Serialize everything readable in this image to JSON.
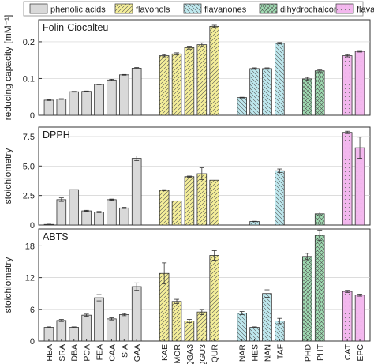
{
  "legend": {
    "items": [
      {
        "label": "phenolic acids",
        "color": "#d9d9d9",
        "pattern": "solid"
      },
      {
        "label": "flavonols",
        "color": "#f5ef9a",
        "pattern": "slash"
      },
      {
        "label": "flavanones",
        "color": "#bfe9ef",
        "pattern": "backslash"
      },
      {
        "label": "dihydrochalcones",
        "color": "#9fdcb2",
        "pattern": "cross"
      },
      {
        "label": "flavanols",
        "color": "#f3b8ee",
        "pattern": "dots"
      }
    ]
  },
  "chart_data": [
    {
      "type": "bar",
      "title": "Folin-Ciocalteu",
      "ylabel": "reducing capacity [mM⁻¹]",
      "ylim": [
        0,
        0.26
      ],
      "yticks": [
        0,
        0.1,
        0.2
      ],
      "yticklabels": [
        "0",
        "0.1",
        "0.2"
      ],
      "grid": true,
      "categories": [
        "HBA",
        "SRA",
        "DBA",
        "PCA",
        "FEA",
        "CAA",
        "SIA",
        "GAA",
        "KAE",
        "MOR",
        "QGA3",
        "QGU3",
        "QUR",
        "NAR",
        "HES",
        "NAN",
        "TAF",
        "PHD",
        "PHT",
        "CAT",
        "EPC"
      ],
      "groups": [
        "phenolic acids",
        "phenolic acids",
        "phenolic acids",
        "phenolic acids",
        "phenolic acids",
        "phenolic acids",
        "phenolic acids",
        "phenolic acids",
        "flavonols",
        "flavonols",
        "flavonols",
        "flavonols",
        "flavonols",
        "flavanones",
        "flavanones",
        "flavanones",
        "flavanones",
        "dihydrochalcones",
        "dihydrochalcones",
        "flavanols",
        "flavanols"
      ],
      "values": [
        0.041,
        0.044,
        0.064,
        0.065,
        0.084,
        0.096,
        0.11,
        0.128,
        0.162,
        0.167,
        0.184,
        0.192,
        0.242,
        0.048,
        0.127,
        0.127,
        0.196,
        0.099,
        0.121,
        0.162,
        0.174
      ],
      "errors": [
        0.001,
        0.001,
        0.001,
        0.001,
        0.001,
        0.002,
        0.001,
        0.002,
        0.003,
        0.003,
        0.004,
        0.005,
        0.003,
        0.001,
        0.002,
        0.002,
        0.002,
        0.004,
        0.003,
        0.003,
        0.002
      ]
    },
    {
      "type": "bar",
      "title": "DPPH",
      "ylabel": "stoichiometry",
      "ylim": [
        0,
        8.3
      ],
      "yticks": [
        0,
        2.5,
        5.0,
        7.5
      ],
      "yticklabels": [
        "0",
        "2.5",
        "5.0",
        "7.5"
      ],
      "grid": true,
      "categories": [
        "HBA",
        "SRA",
        "DBA",
        "PCA",
        "FEA",
        "CAA",
        "SIA",
        "GAA",
        "KAE",
        "MOR",
        "QGA3",
        "QGU3",
        "QUR",
        "NAR",
        "HES",
        "NAN",
        "TAF",
        "PHD",
        "PHT",
        "CAT",
        "EPC"
      ],
      "groups": [
        "phenolic acids",
        "phenolic acids",
        "phenolic acids",
        "phenolic acids",
        "phenolic acids",
        "phenolic acids",
        "phenolic acids",
        "phenolic acids",
        "flavonols",
        "flavonols",
        "flavonols",
        "flavonols",
        "flavonols",
        "flavanones",
        "flavanones",
        "flavanones",
        "flavanones",
        "dihydrochalcones",
        "dihydrochalcones",
        "flavanols",
        "flavanols"
      ],
      "values": [
        0.05,
        2.15,
        3.0,
        1.2,
        1.1,
        2.15,
        1.45,
        5.65,
        2.95,
        2.05,
        4.1,
        4.35,
        3.8,
        0.0,
        0.3,
        0.0,
        4.6,
        0.0,
        0.95,
        7.85,
        6.55
      ],
      "errors": [
        0.02,
        0.15,
        0.0,
        0.05,
        0.05,
        0.05,
        0.05,
        0.2,
        0.05,
        0.0,
        0.05,
        0.5,
        0.0,
        0.0,
        0.02,
        0.0,
        0.15,
        0.0,
        0.15,
        0.1,
        0.9
      ]
    },
    {
      "type": "bar",
      "title": "ABTS",
      "ylabel": "stoichiometry",
      "ylim": [
        0,
        21.2
      ],
      "yticks": [
        0,
        6,
        12,
        18
      ],
      "yticklabels": [
        "0",
        "6",
        "12",
        "18"
      ],
      "grid": true,
      "categories": [
        "HBA",
        "SRA",
        "DBA",
        "PCA",
        "FEA",
        "CAA",
        "SIA",
        "GAA",
        "KAE",
        "MOR",
        "QGA3",
        "QGU3",
        "QUR",
        "NAR",
        "HES",
        "NAN",
        "TAF",
        "PHD",
        "PHT",
        "CAT",
        "EPC"
      ],
      "groups": [
        "phenolic acids",
        "phenolic acids",
        "phenolic acids",
        "phenolic acids",
        "phenolic acids",
        "phenolic acids",
        "phenolic acids",
        "phenolic acids",
        "flavonols",
        "flavonols",
        "flavonols",
        "flavonols",
        "flavonols",
        "flavanones",
        "flavanones",
        "flavanones",
        "flavanones",
        "dihydrochalcones",
        "dihydrochalcones",
        "flavanols",
        "flavanols"
      ],
      "values": [
        2.6,
        3.9,
        2.6,
        4.9,
        8.2,
        4.2,
        5.0,
        10.3,
        12.8,
        7.5,
        3.8,
        5.5,
        16.2,
        5.3,
        2.6,
        9.0,
        3.8,
        16.0,
        20.0,
        9.4,
        8.7
      ],
      "errors": [
        0.1,
        0.2,
        0.1,
        0.2,
        0.6,
        0.2,
        0.2,
        0.7,
        2.0,
        0.4,
        0.3,
        0.5,
        0.9,
        0.3,
        0.1,
        0.7,
        0.5,
        0.6,
        1.0,
        0.2,
        0.2
      ]
    }
  ]
}
